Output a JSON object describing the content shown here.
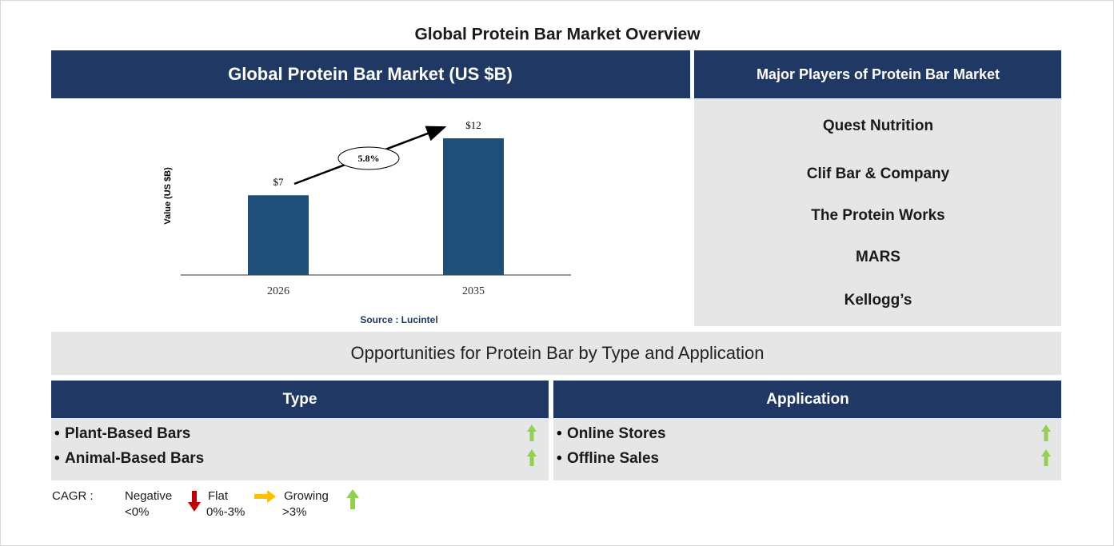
{
  "title": "Global Protein Bar Market Overview",
  "market_panel": {
    "header": "Global Protein Bar Market (US $B)"
  },
  "chart_data": {
    "type": "bar",
    "ylabel": "Value (US $B)",
    "categories": [
      "2026",
      "2035"
    ],
    "values": [
      7,
      12
    ],
    "value_labels": [
      "$7",
      "$12"
    ],
    "color": "#1f4e79",
    "annotation": "5.8%",
    "source": "Source : Lucintel"
  },
  "players": {
    "header": "Major Players of Protein Bar Market",
    "items": [
      "Quest Nutrition",
      "Clif Bar & Company",
      "The Protein Works",
      "MARS",
      "Kellogg’s"
    ]
  },
  "opportunities": {
    "title": "Opportunities for Protein Bar by Type and Application",
    "type": {
      "header": "Type",
      "items": [
        "Plant-Based Bars",
        "Animal-Based Bars"
      ]
    },
    "application": {
      "header": "Application",
      "items": [
        "Online Stores",
        "Offline Sales"
      ]
    }
  },
  "legend": {
    "label": "CAGR :",
    "negative": {
      "name": "Negative",
      "range": "<0%"
    },
    "flat": {
      "name": "Flat",
      "range": "0%-3%"
    },
    "growing": {
      "name": "Growing",
      "range": ">3%"
    }
  }
}
